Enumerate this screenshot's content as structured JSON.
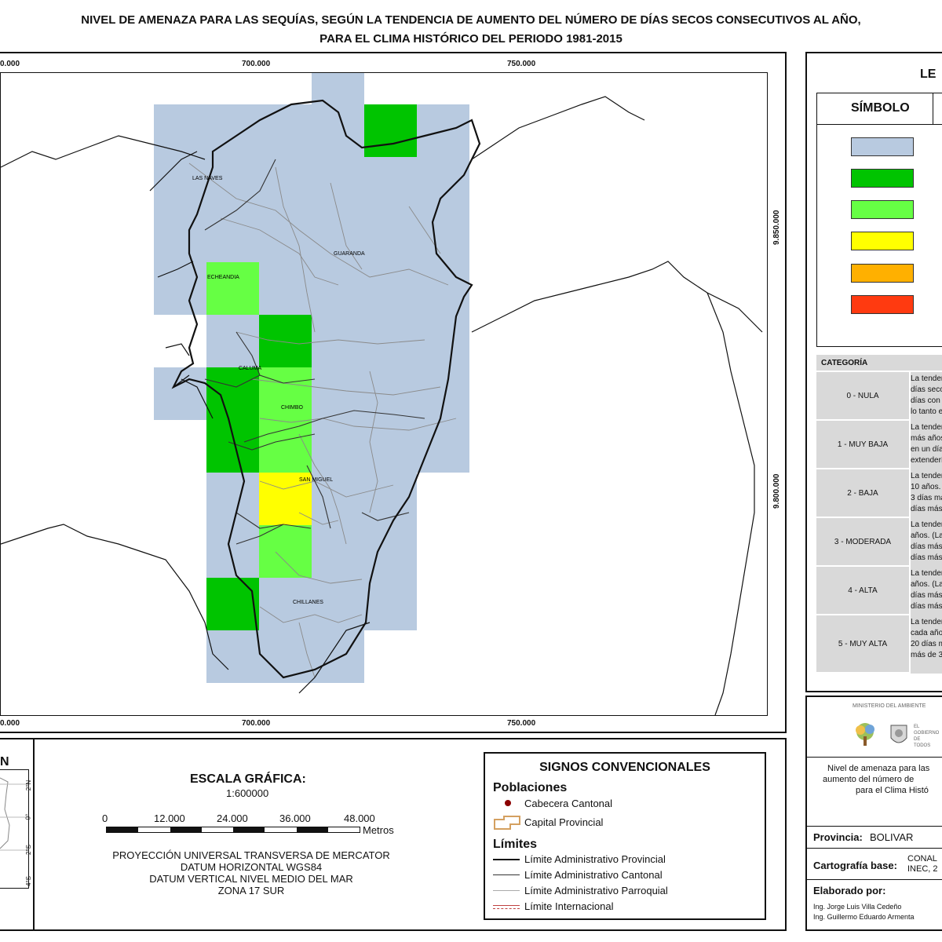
{
  "title": {
    "line1": "NIVEL DE AMENAZA PARA LAS SEQUÍAS, SEGÚN LA TENDENCIA DE AUMENTO DEL NÚMERO DE DÍAS SECOS CONSECUTIVOS AL AÑO,",
    "line2": "PARA EL CLIMA HISTÓRICO DEL PERIODO 1981-2015"
  },
  "map": {
    "x_coords_top": [
      "0.000",
      "700.000",
      "750.000"
    ],
    "x_coords_bottom": [
      "0.000",
      "700.000",
      "750.000"
    ],
    "y_coords": [
      "9.850.000",
      "9.800.000"
    ],
    "places": [
      "LAS NAVES",
      "GUARANDA",
      "ECHEANDIA",
      "CALUMA",
      "CHIMBO",
      "SAN MIGUEL",
      "CHILLANES"
    ],
    "colors": {
      "nula": "#b8cae0",
      "muy_baja": "#00c400",
      "baja": "#66ff44",
      "moderada": "#ffff00",
      "alta": "#ffb000",
      "muy_alta": "#ff3a10"
    }
  },
  "legend": {
    "title": "LE",
    "symbol_header": "SÍMBOLO",
    "category_header": "CATEGORÍA",
    "categories": [
      {
        "name": "0 - NULA",
        "desc": [
          "La tendencia es",
          "días secos cons",
          "días con lluvias",
          "lo tanto el nivel"
        ]
      },
      {
        "name": "1 - MUY BAJA",
        "desc": [
          "La tendencia es",
          "más años. (Las",
          "en un día y med",
          "extenderían en"
        ]
      },
      {
        "name": "2 - BAJA",
        "desc": [
          "La tendencia es",
          "10 años. (Las s",
          "3 días más haci",
          "días más hacia"
        ]
      },
      {
        "name": "3 - MODERADA",
        "desc": [
          "La tendencia es",
          "años. (Las sequ",
          "días más hacia",
          "días más hacia"
        ]
      },
      {
        "name": "4 - ALTA",
        "desc": [
          "La tendencia es",
          "años. (Las sequ",
          "días más hacia",
          "días más hacia"
        ]
      },
      {
        "name": "5 - MUY ALTA",
        "desc": [
          "La tendencia es",
          "cada año. (Las",
          "20 días más ha",
          "más de 30 días"
        ]
      }
    ]
  },
  "inset": {
    "title": "N",
    "lat_labels": [
      "2°N",
      "0°",
      "2°S",
      "4°S"
    ]
  },
  "scale": {
    "title": "ESCALA GRÁFICA:",
    "ratio": "1:600000",
    "ticks": [
      "0",
      "12.000",
      "24.000",
      "36.000",
      "48.000"
    ],
    "unit": "Metros",
    "projection": [
      "PROYECCIÓN UNIVERSAL TRANSVERSA DE MERCATOR",
      "DATUM HORIZONTAL WGS84",
      "DATUM VERTICAL NIVEL MEDIO DEL MAR",
      "ZONA 17 SUR"
    ]
  },
  "signs": {
    "title": "SIGNOS CONVENCIONALES",
    "populations_header": "Poblaciones",
    "cabecera": "Cabecera Cantonal",
    "capital": "Capital Provincial",
    "limits_header": "Límites",
    "limits": [
      "Límite Administrativo Provincial",
      "Límite Administrativo Cantonal",
      "Límite Administrativo Parroquial",
      "Límite Internacional"
    ]
  },
  "credits": {
    "ministry": "MINISTERIO DEL AMBIENTE",
    "gov": "EL GOBIERNO DE TODOS",
    "desc": [
      "Nivel de amenaza para las",
      "aumento del número de",
      "para el Clima Histó"
    ],
    "province_label": "Provincia:",
    "province_value": "BOLIVAR",
    "carto_label": "Cartografía base:",
    "carto_value": [
      "CONAL",
      "INEC, 2"
    ],
    "made_by_label": "Elaborado por:",
    "authors": [
      "Ing. Jorge Luis Villa Cedeño",
      "Ing. Guillermo Eduardo Armenta"
    ]
  }
}
